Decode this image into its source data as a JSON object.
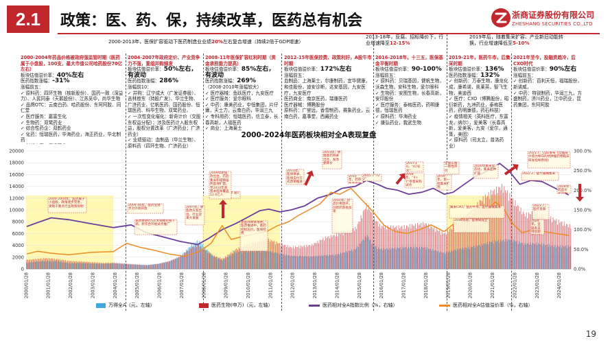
{
  "header": {
    "section_no": "2.1",
    "title": "政策：医、药、保，持续改革，医药总有机会",
    "logo_cn": "浙商证券股份有限公司",
    "logo_en": "ZHESHANG SECURITIES CO.,LTD"
  },
  "top_notes": [
    {
      "pre": "2000-2013年，医保扩容驱动下医药制造业业绩",
      "hl": "20%",
      "post": "左右复合增速（持续2倍于GDP增速）"
    },
    {
      "pre": "2013-18年，反腐、招标降价下，行业增速降至",
      "hl": "12-15%",
      "post": ""
    },
    {
      "pre": "2019年后，随着集采扩容、产业新旧动能转换，行业增速降低至",
      "hl": "5-10%",
      "post": ""
    }
  ],
  "panels": [
    {
      "head": "2000-2004年药品价格被政府强监管时期（医药属于小盘股，100支，最大市值公司哈药股份70亿左右）",
      "val_label": "板块估值溢价率：",
      "val": "40%左右",
      "idx_label": "医药指数涨幅：",
      "idx": "-31%",
      "body": "涨幅前五：\n✓ 原料药：四环生物（核新股份）、国药一致（深益力）、人民同泰（天鹅股份）、江苏吴中，尚华生物\n✓ 品牌OTC：云南白药、哈药股份、东阿阿胶、同仁堂\n✓ 医疗服务：嘉富生化\n✓ 生物药：双鹭药业\n✓ 综合性药企：双鹤药业\n✓ 化药：恒瑞医药，华海药业，海正药业，华北制药\n✓ 创新中药：康缘药业"
    },
    {
      "head": "2004-2007年政府定价、产业竞争力不强，重组并购频发",
      "val_label": "板块估值溢价率：",
      "val": "50%左右，有波动",
      "idx_label": "医药指数涨幅：",
      "idx": "286%",
      "body": "涨幅前10：\n✓ 并购：辽宁成大（广发证券股）、吉林敖东（持股广发）、华兰生物、广济药业、亿帆医药、国药股份、恒瑞医药、科华生物、双鹭药业、\n✓ 一次性变化催化：新奇计价（交股东权益分配）；涉及医药计入股东权益，股权分置改革（广济药业；广济药业）\n✓ 业绩驱动：血制品（华兰生物）、原料药（四环生物、广济药业）"
    },
    {
      "head": "2008-11年医保扩容红利时期（资金承担能力提高）",
      "val_label": "板块估值溢价率：",
      "val": "85%左右，有波动",
      "idx_label": "医药指数涨幅：",
      "idx": "269%",
      "body": "（2008-2010年涨幅较大）\n✓ 医疗器械：鱼跃医疗，九安医疗\n✓ 医疗服务：爱尔眼科\n✓ 中药：康美药业，中恒集团，片仔癀，天士力，云南白药，华润三九\n✓ 专科用药：恒瑞医药，信立泰，长春高新，人福医药\n✓ 商业：上海莱士"
    },
    {
      "head": "2012-15年医保控费、政策利好，A股牛市时期",
      "val_label": "板块估值溢价率：",
      "val": "172%左右",
      "idx_label": "涨幅前五：",
      "idx": "",
      "body": "血制品：上海莱士，尔康制药，宜华健康，和佳股份，迪安诊断，达安基因，九安医疗，九安医疗\n医药商业：南京医药，瑞康医药\n医疗器械：博腾股份\n原料药：广誉远，香雪制药，赛象药业，云南白药，嘉事堂，西藏药业"
    },
    {
      "head": "2016-2018年，十三五，医保基金平衡时期",
      "val_label": "板块估值溢价率：",
      "val": "90-100%",
      "idx_label": "涨幅前五：",
      "idx": "",
      "body": "✓ 原料药：贝瑞基因，健帆生物，沃森生物，安科生物，爱尔眼科\n✓ 生物药：安图生物，长春高新，安印股份\n✓ 医疗服务：泰格医药，药明康德，恒瑞医药\n✓ 原料药：华海药业\n✓ 康弘药业，我武生物"
    },
    {
      "head": "2019-21年，医药牛市，后集采时期",
      "val_label": "板块估值溢价率：",
      "val": "136%",
      "idx_label": "医药指数涨幅：",
      "idx": "132%",
      "body": "✓ 创新药：万泰生物，康龙化成，康希诺，凯莱英，智飞生物，美迪西\n✓ 医疗：CXO（博腾股份，昭衍新药，九洲药业，泰格医药，药明康德，药石科技）\n✓ 疫情相关（英科医疗，东富龙，纳尔），爱美客（长春高新，爱美客，九安（爱尔，通策，美团）\n✓ 原料药（司太立，普洛药业）"
    },
    {
      "head": "2021年至今，投融资趋冷，后CXO时代",
      "val_label": "板块估值溢价率：",
      "val": "90%左右",
      "idx_label": "涨幅前五：",
      "idx": "",
      "body": "✓ 创新药：百利天恒，福瑞股份，新诺威，\n✓ 中药：特锐制药，华润三九，方盛制药，济川药业，江中药业，昆药集团，东阿阿胶"
    }
  ],
  "annotations": [
    "2000-2004年，医药属于小盘股，政策逐步完善，受制于重点行业政策限制",
    "2004-06年，医药业逐步对外资开放",
    "发改委进行5次大规模价格下调，新农合开始试点推广",
    "2007年，新医改方案出台，行业迎来大发展",
    "医保扩容1",
    "2009年新医改出台，药品集采和城镇居民医保扩面，至2010年底基本医保覆盖12.6亿人",
    "新医改政策落地，医改推进中，基药招标压价，医保控费",
    "2011年，医保目录，医保支付方式改革推进",
    "2013年，新版基药目录出台，发改委降价",
    "2015年，药审改革启动",
    "2015.7“722”",
    "2015年，药品价格放开，创新药获批加速",
    "2017.10，“42号文”",
    "2018年，“4+7”带量采购试点",
    "全面实施一致性评价",
    "2019年，第一批集采扩围",
    "集采CXO，医药牛市，医疗器械集采",
    "2018年底，医保局成立",
    "2020年集采常态化，集采品种扩容",
    "2021.7，CDE发布《以临床价值为导向的抗肿瘤药物临床研发指导原则》",
    "2022.2，医疗器械集采",
    "2024年药品价格治理",
    "2023.7，医疗反腐",
    "2024年，全链条支持创新药发展"
  ],
  "chart_data": {
    "type": "line",
    "title": "2000-2024年医药板块相对全A表现复盘",
    "x_ticks": [
      "2000/01/28",
      "2001/01/28",
      "2002/01/28",
      "2003/01/28",
      "2004/01/28",
      "2005/01/28",
      "2006/01/28",
      "2007/01/28",
      "2008/01/28",
      "2009/01/28",
      "2010/01/28",
      "2011/01/28",
      "2012/01/28",
      "2013/01/28",
      "2014/01/28",
      "2015/01/28",
      "2016/01/28",
      "2017/01/28",
      "2018/01/28",
      "2019/01/28",
      "2020/01/28",
      "2021/01/28",
      "2022/01/28",
      "2023/01/28",
      "2024/01/28"
    ],
    "x_range": [
      2000.07,
      2024.6
    ],
    "y_left_range": [
      0,
      20000
    ],
    "y_left_ticks": [
      "0",
      "2000",
      "4000",
      "6000",
      "8000",
      "10000",
      "12000",
      "14000",
      "16000",
      "18000",
      "20000"
    ],
    "y_right_range": [
      0,
      300
    ],
    "y_right_ticks": [
      "0.0%",
      "50.0%",
      "100.0%",
      "150.0%",
      "200.0%",
      "250.0%",
      "300.0%"
    ],
    "highlight_periods": [
      [
        2000.07,
        2004.0
      ],
      [
        2008.0,
        2011.5
      ],
      [
        2019.0,
        2021.5
      ]
    ],
    "series": [
      {
        "name": "万得全A（元，左轴）",
        "axis": "left",
        "style": "bar",
        "color": "#3fa9e0",
        "points": [
          [
            2000.1,
            1100
          ],
          [
            2000.5,
            1300
          ],
          [
            2001.0,
            1400
          ],
          [
            2001.5,
            1350
          ],
          [
            2002.0,
            1000
          ],
          [
            2002.5,
            1050
          ],
          [
            2003.0,
            950
          ],
          [
            2003.5,
            900
          ],
          [
            2004.0,
            1000
          ],
          [
            2004.5,
            850
          ],
          [
            2005.0,
            750
          ],
          [
            2005.5,
            700
          ],
          [
            2006.0,
            900
          ],
          [
            2006.5,
            1300
          ],
          [
            2007.0,
            2200
          ],
          [
            2007.5,
            4200
          ],
          [
            2007.8,
            5000
          ],
          [
            2008.0,
            4300
          ],
          [
            2008.5,
            2200
          ],
          [
            2008.9,
            1500
          ],
          [
            2009.5,
            3000
          ],
          [
            2010.0,
            3100
          ],
          [
            2010.9,
            3200
          ],
          [
            2011.5,
            2700
          ],
          [
            2012.0,
            2300
          ],
          [
            2012.9,
            2200
          ],
          [
            2013.5,
            2400
          ],
          [
            2014.0,
            2500
          ],
          [
            2014.9,
            3500
          ],
          [
            2015.4,
            6000
          ],
          [
            2015.7,
            4200
          ],
          [
            2016.0,
            3500
          ],
          [
            2016.5,
            3600
          ],
          [
            2017.0,
            3800
          ],
          [
            2018.0,
            3800
          ],
          [
            2018.9,
            2800
          ],
          [
            2019.5,
            3500
          ],
          [
            2020.0,
            3800
          ],
          [
            2020.5,
            4200
          ],
          [
            2021.0,
            4800
          ],
          [
            2021.9,
            5200
          ],
          [
            2022.5,
            4400
          ],
          [
            2023.0,
            4500
          ],
          [
            2023.9,
            4000
          ],
          [
            2024.5,
            4000
          ]
        ]
      },
      {
        "name": "医药生物(申万)（元，左轴）",
        "axis": "left",
        "style": "bar",
        "color": "#c0282e",
        "points": [
          [
            2000.1,
            1600
          ],
          [
            2000.5,
            1750
          ],
          [
            2001.0,
            1900
          ],
          [
            2001.5,
            1700
          ],
          [
            2002.0,
            1400
          ],
          [
            2002.5,
            1300
          ],
          [
            2003.0,
            1200
          ],
          [
            2003.5,
            1050
          ],
          [
            2004.0,
            1100
          ],
          [
            2004.5,
            950
          ],
          [
            2005.0,
            800
          ],
          [
            2005.5,
            650
          ],
          [
            2006.0,
            900
          ],
          [
            2006.5,
            1400
          ],
          [
            2007.0,
            2200
          ],
          [
            2007.5,
            3800
          ],
          [
            2007.8,
            4200
          ],
          [
            2008.0,
            3600
          ],
          [
            2008.5,
            2300
          ],
          [
            2008.9,
            1800
          ],
          [
            2009.5,
            3500
          ],
          [
            2010.0,
            4300
          ],
          [
            2010.9,
            5300
          ],
          [
            2011.5,
            4400
          ],
          [
            2012.0,
            3800
          ],
          [
            2012.9,
            4200
          ],
          [
            2013.5,
            5500
          ],
          [
            2014.0,
            6000
          ],
          [
            2014.9,
            7200
          ],
          [
            2015.4,
            11500
          ],
          [
            2015.7,
            9000
          ],
          [
            2016.0,
            7500
          ],
          [
            2016.5,
            7400
          ],
          [
            2017.0,
            7400
          ],
          [
            2018.0,
            8000
          ],
          [
            2018.9,
            6200
          ],
          [
            2019.5,
            8200
          ],
          [
            2020.0,
            9500
          ],
          [
            2020.5,
            12000
          ],
          [
            2021.0,
            13500
          ],
          [
            2021.5,
            14500
          ],
          [
            2021.9,
            12500
          ],
          [
            2022.5,
            9500
          ],
          [
            2023.0,
            10000
          ],
          [
            2023.9,
            8600
          ],
          [
            2024.5,
            7600
          ]
        ]
      },
      {
        "name": "医药相对全A指数比例（%，右轴）",
        "axis": "right",
        "style": "line",
        "color": "#6a3d9a",
        "points": [
          [
            2000.1,
            108
          ],
          [
            2000.6,
            118
          ],
          [
            2001.2,
            130
          ],
          [
            2002.0,
            125
          ],
          [
            2003.0,
            115
          ],
          [
            2004.0,
            105
          ],
          [
            2004.8,
            112
          ],
          [
            2005.5,
            92
          ],
          [
            2006.2,
            82
          ],
          [
            2007.0,
            70
          ],
          [
            2007.8,
            62
          ],
          [
            2008.3,
            78
          ],
          [
            2008.9,
            100
          ],
          [
            2009.5,
            115
          ],
          [
            2010.0,
            130
          ],
          [
            2010.6,
            148
          ],
          [
            2011.0,
            152
          ],
          [
            2011.5,
            145
          ],
          [
            2012.0,
            150
          ],
          [
            2012.6,
            160
          ],
          [
            2013.2,
            180
          ],
          [
            2013.8,
            190
          ],
          [
            2014.3,
            205
          ],
          [
            2014.9,
            210
          ],
          [
            2015.4,
            225
          ],
          [
            2015.9,
            215
          ],
          [
            2016.3,
            205
          ],
          [
            2016.8,
            200
          ],
          [
            2017.3,
            190
          ],
          [
            2017.9,
            195
          ],
          [
            2018.4,
            205
          ],
          [
            2018.9,
            190
          ],
          [
            2019.3,
            195
          ],
          [
            2019.8,
            215
          ],
          [
            2020.3,
            235
          ],
          [
            2020.7,
            245
          ],
          [
            2021.0,
            255
          ],
          [
            2021.4,
            268
          ],
          [
            2021.8,
            250
          ],
          [
            2022.3,
            215
          ],
          [
            2022.8,
            225
          ],
          [
            2023.3,
            222
          ],
          [
            2023.9,
            205
          ],
          [
            2024.5,
            188
          ]
        ]
      },
      {
        "name": "医药相对全A估值溢价率（%，右轴）",
        "axis": "right",
        "style": "line",
        "color": "#f08a24",
        "points": [
          [
            2000.1,
            38
          ],
          [
            2000.6,
            45
          ],
          [
            2001.2,
            40
          ],
          [
            2002.0,
            36
          ],
          [
            2003.0,
            42
          ],
          [
            2004.0,
            44
          ],
          [
            2004.6,
            65
          ],
          [
            2005.2,
            55
          ],
          [
            2005.8,
            48
          ],
          [
            2006.5,
            38
          ],
          [
            2007.2,
            32
          ],
          [
            2007.9,
            45
          ],
          [
            2008.4,
            65
          ],
          [
            2008.9,
            110
          ],
          [
            2009.3,
            75
          ],
          [
            2009.8,
            82
          ],
          [
            2010.3,
            88
          ],
          [
            2010.9,
            95
          ],
          [
            2011.4,
            110
          ],
          [
            2011.9,
            120
          ],
          [
            2012.3,
            135
          ],
          [
            2012.8,
            150
          ],
          [
            2013.3,
            165
          ],
          [
            2013.8,
            195
          ],
          [
            2014.2,
            190
          ],
          [
            2014.7,
            205
          ],
          [
            2015.2,
            175
          ],
          [
            2015.7,
            145
          ],
          [
            2016.2,
            110
          ],
          [
            2016.7,
            95
          ],
          [
            2017.2,
            90
          ],
          [
            2017.8,
            100
          ],
          [
            2018.3,
            112
          ],
          [
            2018.9,
            95
          ],
          [
            2019.4,
            118
          ],
          [
            2019.9,
            135
          ],
          [
            2020.4,
            160
          ],
          [
            2020.8,
            150
          ],
          [
            2021.2,
            170
          ],
          [
            2021.6,
            152
          ],
          [
            2021.9,
            120
          ],
          [
            2022.4,
            92
          ],
          [
            2022.9,
            100
          ],
          [
            2023.4,
            95
          ],
          [
            2023.9,
            90
          ],
          [
            2024.5,
            85
          ]
        ]
      }
    ]
  },
  "page_number": "19"
}
